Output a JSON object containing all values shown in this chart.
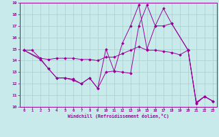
{
  "background_color": "#c8eaea",
  "grid_color": "#a8cece",
  "line_color": "#990099",
  "xlim": [
    -0.5,
    23.5
  ],
  "ylim": [
    10,
    19
  ],
  "yticks": [
    10,
    11,
    12,
    13,
    14,
    15,
    16,
    17,
    18,
    19
  ],
  "xticks": [
    0,
    1,
    2,
    3,
    4,
    5,
    6,
    7,
    8,
    9,
    10,
    11,
    12,
    13,
    14,
    15,
    16,
    17,
    18,
    19,
    20,
    21,
    22,
    23
  ],
  "xlabel": "Windchill (Refroidissement éolien,°C)",
  "series": [
    {
      "x": [
        0,
        1,
        2,
        3,
        4,
        5,
        6,
        7,
        8,
        9,
        10,
        11,
        12,
        13,
        14,
        15,
        16,
        17,
        18,
        19,
        20,
        21,
        22,
        23
      ],
      "y": [
        14.9,
        14.9,
        14.2,
        14.1,
        14.2,
        14.2,
        14.2,
        14.1,
        14.1,
        14.0,
        14.3,
        14.3,
        14.6,
        14.9,
        15.2,
        14.9,
        14.9,
        14.8,
        14.7,
        14.5,
        14.9,
        10.3,
        10.9,
        10.5
      ]
    },
    {
      "x": [
        0,
        2,
        3,
        4,
        5,
        6,
        7,
        8,
        9,
        10,
        11,
        12,
        13,
        14,
        15,
        16,
        17,
        18,
        20,
        21,
        22,
        23
      ],
      "y": [
        14.9,
        14.1,
        13.3,
        12.5,
        12.5,
        12.4,
        12.0,
        12.5,
        11.6,
        13.0,
        13.1,
        13.0,
        12.9,
        17.0,
        18.8,
        17.0,
        17.0,
        17.2,
        14.9,
        10.3,
        10.9,
        10.5
      ]
    },
    {
      "x": [
        0,
        2,
        3,
        4,
        5,
        6,
        7,
        8,
        9,
        10,
        11,
        12,
        13,
        14,
        15,
        16,
        17,
        18,
        20,
        21,
        22,
        23
      ],
      "y": [
        14.9,
        14.2,
        13.3,
        12.5,
        12.5,
        12.3,
        12.0,
        12.5,
        11.6,
        15.0,
        13.1,
        15.5,
        17.0,
        18.8,
        15.0,
        17.0,
        18.5,
        17.2,
        14.9,
        10.4,
        10.9,
        10.5
      ]
    }
  ]
}
